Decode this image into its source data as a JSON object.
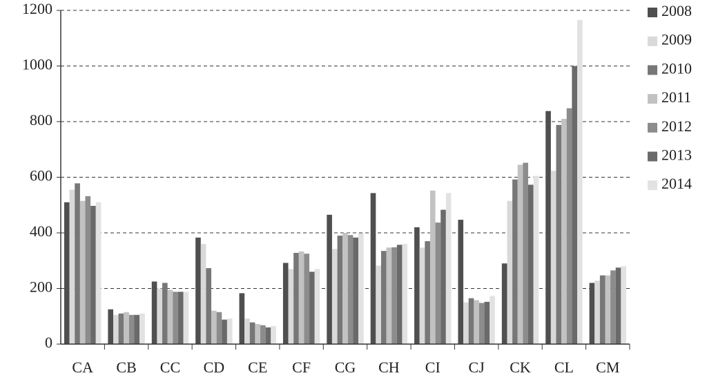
{
  "chart_data": {
    "type": "bar",
    "categories": [
      "CA",
      "CB",
      "CC",
      "CD",
      "CE",
      "CF",
      "CG",
      "CH",
      "CI",
      "CJ",
      "CK",
      "CL",
      "CM"
    ],
    "series": [
      {
        "name": "2008",
        "color": "#4f4f4f",
        "values": [
          510,
          125,
          225,
          383,
          183,
          292,
          465,
          543,
          420,
          447,
          290,
          838,
          220
        ]
      },
      {
        "name": "2009",
        "color": "#d9d9d9",
        "values": [
          555,
          105,
          200,
          360,
          92,
          270,
          342,
          282,
          347,
          150,
          515,
          623,
          228
        ]
      },
      {
        "name": "2010",
        "color": "#777777",
        "values": [
          578,
          110,
          220,
          273,
          78,
          328,
          390,
          335,
          370,
          165,
          592,
          788,
          247
        ]
      },
      {
        "name": "2011",
        "color": "#c2c2c2",
        "values": [
          515,
          115,
          195,
          120,
          72,
          333,
          400,
          347,
          552,
          158,
          645,
          810,
          247
        ]
      },
      {
        "name": "2012",
        "color": "#8c8c8c",
        "values": [
          532,
          105,
          188,
          115,
          68,
          325,
          392,
          348,
          437,
          148,
          652,
          848,
          265
        ]
      },
      {
        "name": "2013",
        "color": "#6a6a6a",
        "values": [
          497,
          105,
          188,
          88,
          60,
          260,
          383,
          357,
          483,
          152,
          573,
          1000,
          275
        ]
      },
      {
        "name": "2014",
        "color": "#e2e2e2",
        "values": [
          510,
          110,
          188,
          92,
          65,
          270,
          398,
          360,
          543,
          173,
          605,
          1165,
          280
        ]
      }
    ],
    "ylim": [
      0,
      1200
    ],
    "yticks": [
      0,
      200,
      400,
      600,
      800,
      1000,
      1200
    ],
    "grid": true
  }
}
